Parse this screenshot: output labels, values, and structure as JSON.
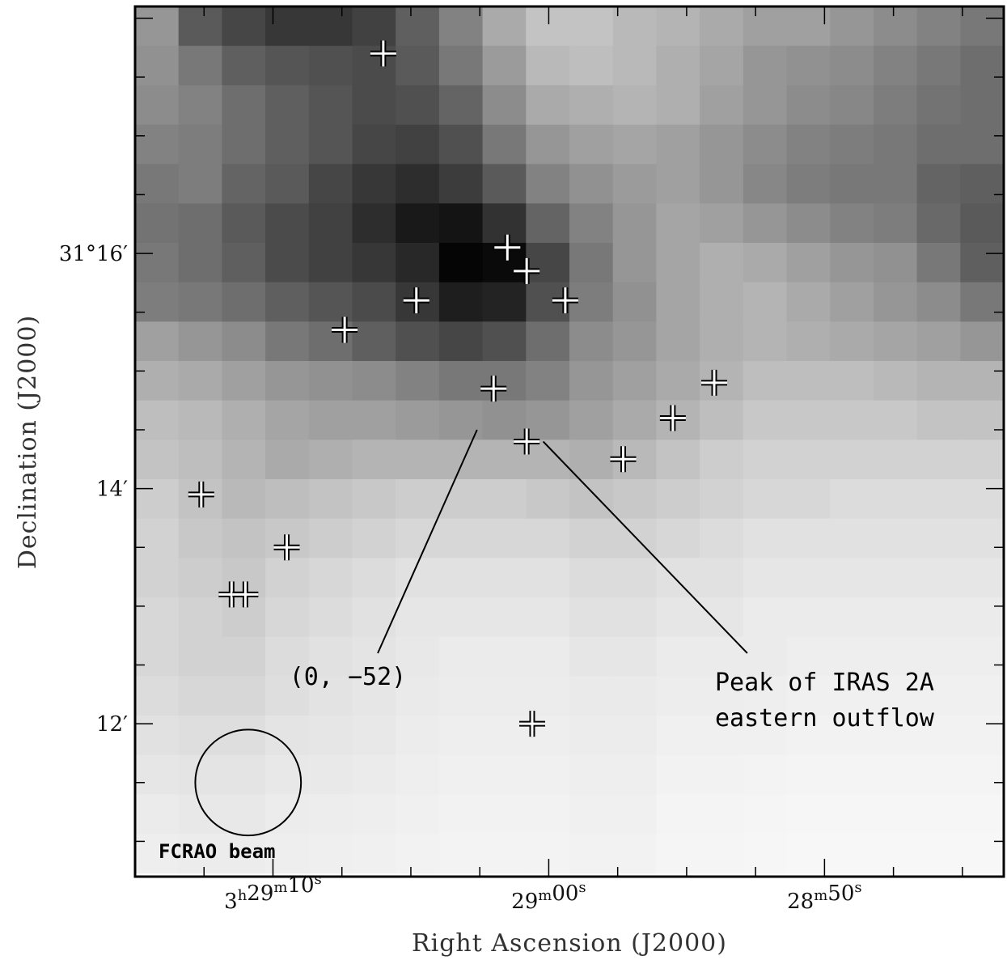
{
  "chart_data": {
    "type": "heatmap",
    "colormap": "grayscale",
    "xlabel": "Right Ascension (J2000)",
    "ylabel": "Declination (J2000)",
    "xlim_sec_offset": [
      15.0,
      -16.5
    ],
    "ylim_arcmin": [
      10.7,
      18.1
    ],
    "x_ticks": [
      {
        "value": 10,
        "label_parts": [
          "3",
          "h",
          "29",
          "m",
          "10",
          "s"
        ]
      },
      {
        "value": 0,
        "label_parts": [
          "",
          "",
          "29",
          "m",
          "00",
          "s"
        ]
      },
      {
        "value": -10,
        "label_parts": [
          "",
          "",
          "28",
          "m",
          "50",
          "s"
        ]
      }
    ],
    "y_ticks": [
      {
        "value": 16,
        "label": "31°16′"
      },
      {
        "value": 14,
        "label": "14′"
      },
      {
        "value": 12,
        "label": "12′"
      }
    ],
    "grid_x_start": 15.0,
    "grid_x_step": -1.575,
    "grid_y_start": 18.1,
    "grid_y_step": -0.335,
    "grid": [
      [
        150,
        90,
        70,
        55,
        55,
        65,
        95,
        130,
        170,
        195,
        195,
        185,
        180,
        170,
        160,
        160,
        150,
        140,
        130,
        120,
        115,
        110
      ],
      [
        145,
        120,
        95,
        85,
        80,
        75,
        90,
        120,
        155,
        185,
        190,
        185,
        175,
        165,
        150,
        145,
        140,
        130,
        120,
        110,
        105,
        100
      ],
      [
        140,
        130,
        110,
        95,
        85,
        75,
        80,
        100,
        140,
        170,
        175,
        180,
        175,
        160,
        150,
        140,
        135,
        125,
        115,
        110,
        105,
        100
      ],
      [
        130,
        125,
        110,
        95,
        85,
        70,
        65,
        80,
        120,
        150,
        160,
        165,
        160,
        150,
        140,
        130,
        125,
        120,
        110,
        110,
        95,
        90
      ],
      [
        120,
        125,
        100,
        90,
        70,
        55,
        45,
        60,
        90,
        130,
        145,
        155,
        160,
        150,
        135,
        125,
        120,
        120,
        100,
        95,
        90,
        85
      ],
      [
        115,
        110,
        90,
        75,
        65,
        45,
        25,
        20,
        50,
        100,
        130,
        150,
        165,
        160,
        150,
        140,
        130,
        125,
        105,
        90,
        85,
        80
      ],
      [
        120,
        110,
        95,
        75,
        65,
        55,
        40,
        5,
        10,
        70,
        120,
        150,
        165,
        175,
        170,
        160,
        150,
        145,
        120,
        95,
        90,
        85
      ],
      [
        125,
        120,
        110,
        95,
        85,
        75,
        55,
        30,
        35,
        80,
        125,
        145,
        165,
        175,
        180,
        170,
        160,
        150,
        140,
        120,
        110,
        110
      ],
      [
        160,
        150,
        140,
        120,
        110,
        95,
        80,
        70,
        80,
        110,
        140,
        150,
        165,
        175,
        180,
        175,
        170,
        165,
        160,
        150,
        150,
        150
      ],
      [
        175,
        170,
        160,
        150,
        145,
        140,
        130,
        120,
        120,
        130,
        150,
        160,
        170,
        180,
        190,
        190,
        190,
        185,
        180,
        180,
        180,
        180
      ],
      [
        190,
        185,
        175,
        165,
        160,
        160,
        155,
        150,
        145,
        150,
        160,
        170,
        180,
        190,
        200,
        200,
        200,
        200,
        195,
        195,
        195,
        200
      ],
      [
        195,
        190,
        180,
        170,
        175,
        180,
        180,
        180,
        180,
        180,
        175,
        185,
        195,
        205,
        210,
        210,
        210,
        210,
        210,
        210,
        210,
        215
      ],
      [
        205,
        195,
        185,
        190,
        195,
        200,
        205,
        205,
        205,
        200,
        195,
        200,
        205,
        210,
        215,
        215,
        220,
        220,
        220,
        220,
        220,
        220
      ],
      [
        210,
        200,
        195,
        200,
        205,
        210,
        215,
        215,
        215,
        215,
        210,
        210,
        215,
        220,
        225,
        225,
        225,
        225,
        225,
        225,
        225,
        225
      ],
      [
        210,
        205,
        200,
        210,
        215,
        220,
        225,
        225,
        225,
        225,
        220,
        220,
        225,
        225,
        230,
        230,
        230,
        230,
        230,
        230,
        230,
        230
      ],
      [
        215,
        210,
        205,
        215,
        220,
        225,
        230,
        230,
        230,
        230,
        225,
        225,
        230,
        230,
        235,
        235,
        235,
        235,
        235,
        235,
        235,
        235
      ],
      [
        215,
        210,
        210,
        220,
        225,
        228,
        232,
        235,
        235,
        235,
        230,
        230,
        235,
        235,
        235,
        238,
        238,
        238,
        238,
        238,
        238,
        240
      ],
      [
        220,
        215,
        215,
        222,
        227,
        230,
        234,
        236,
        236,
        236,
        234,
        234,
        237,
        237,
        238,
        240,
        240,
        240,
        240,
        240,
        242,
        242
      ],
      [
        225,
        222,
        222,
        228,
        230,
        232,
        236,
        238,
        238,
        238,
        236,
        236,
        240,
        240,
        240,
        242,
        242,
        242,
        242,
        242,
        243,
        243
      ],
      [
        230,
        228,
        228,
        232,
        233,
        235,
        238,
        240,
        240,
        240,
        238,
        238,
        242,
        242,
        243,
        244,
        244,
        244,
        244,
        244,
        245,
        245
      ],
      [
        235,
        232,
        232,
        236,
        237,
        238,
        240,
        242,
        242,
        242,
        240,
        240,
        244,
        244,
        245,
        246,
        246,
        246,
        246,
        246,
        246,
        246
      ],
      [
        238,
        236,
        236,
        238,
        239,
        240,
        242,
        243,
        243,
        243,
        242,
        242,
        245,
        245,
        246,
        247,
        247,
        247,
        247,
        247,
        247,
        247
      ]
    ],
    "markers": [
      {
        "x": 6.0,
        "y": 17.7
      },
      {
        "x": 1.5,
        "y": 16.05
      },
      {
        "x": 0.8,
        "y": 15.85
      },
      {
        "x": 4.8,
        "y": 15.6
      },
      {
        "x": -0.6,
        "y": 15.6
      },
      {
        "x": 7.4,
        "y": 15.35
      },
      {
        "x": 2.0,
        "y": 14.85
      },
      {
        "x": -6.0,
        "y": 14.9
      },
      {
        "x": -4.5,
        "y": 14.6
      },
      {
        "x": 0.8,
        "y": 14.4
      },
      {
        "x": -2.7,
        "y": 14.25
      },
      {
        "x": 12.6,
        "y": 13.95
      },
      {
        "x": 9.5,
        "y": 13.5
      },
      {
        "x": 11.5,
        "y": 13.1
      },
      {
        "x": 11.0,
        "y": 13.1
      },
      {
        "x": 0.6,
        "y": 12.0
      }
    ],
    "annotations": [
      {
        "text": "(0, −52)",
        "line_from": [
          6.2,
          12.6
        ],
        "line_to": [
          2.6,
          14.5
        ]
      },
      {
        "text": "Peak of IRAS 2A",
        "text2": "eastern outflow",
        "line_from": [
          -7.2,
          12.6
        ],
        "line_to": [
          0.2,
          14.4
        ]
      }
    ],
    "beam": {
      "label": "FCRAO beam",
      "x": 10.9,
      "y": 11.5,
      "radius_arcmin": 0.45
    }
  }
}
